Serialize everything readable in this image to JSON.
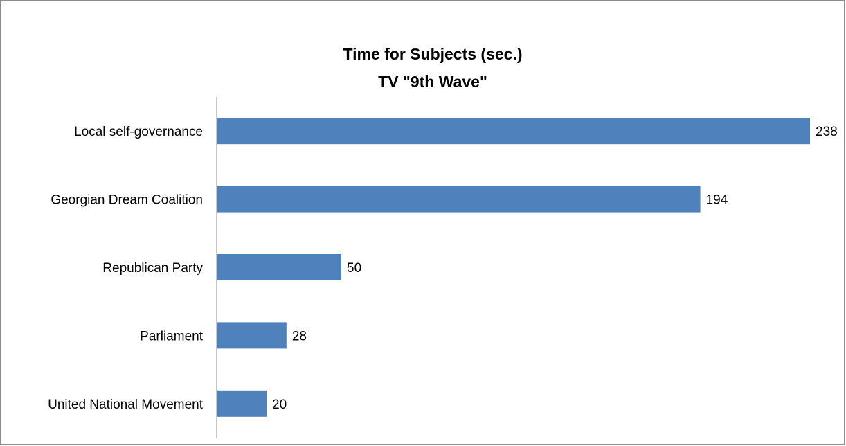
{
  "chart_data": {
    "type": "bar",
    "orientation": "horizontal",
    "title": "Time for Subjects (sec.)",
    "subtitle": "TV \"9th Wave\"",
    "categories": [
      "Local self-governance",
      "Georgian Dream Coalition",
      "Republican Party",
      "Parliament",
      "United National Movement"
    ],
    "values": [
      238,
      194,
      50,
      28,
      20
    ],
    "xlim": [
      0,
      238
    ],
    "grid": false,
    "legend": "none",
    "data_labels": true,
    "bar_color": "#4f81bd",
    "axis_color": "#8c8c8c"
  }
}
